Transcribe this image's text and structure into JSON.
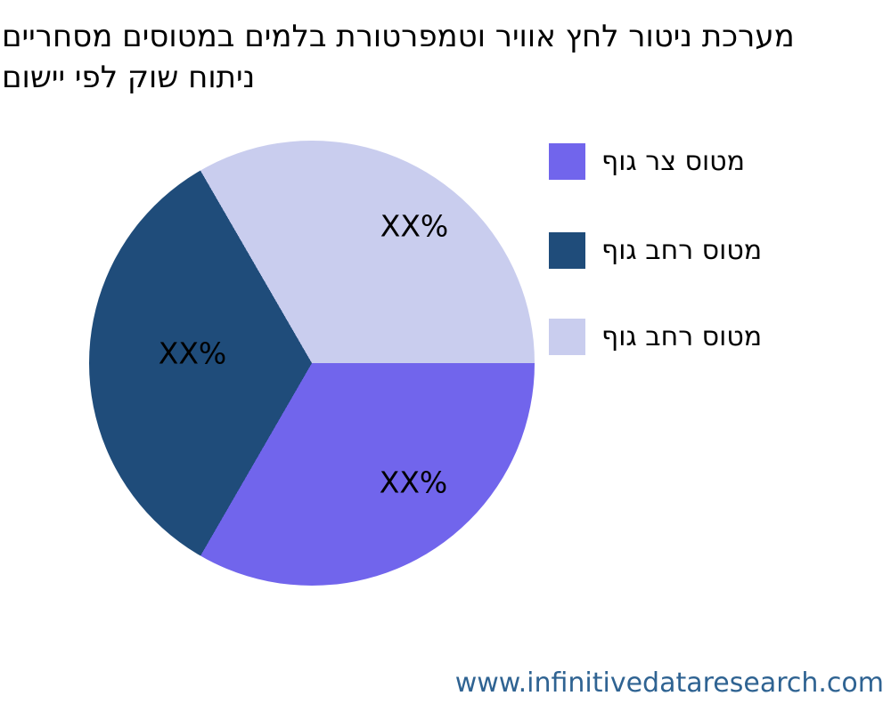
{
  "title": {
    "line1": "מערכת ניטור לחץ אוויר וטמפרטורת בלמים במטוסים מסחריים",
    "line2": "ניתוח שוק לפי יישום"
  },
  "chart_data": {
    "type": "pie",
    "title": "מערכת ניטור לחץ אוויר וטמפרטורת בלמים במטוסים מסחריים ניתוח שוק לפי יישום",
    "labels": [
      "מטוס צר גוף",
      "מטוס רחב גוף",
      "מטוס רחב גוף"
    ],
    "values": [
      33.33,
      33.33,
      33.34
    ],
    "value_labels": [
      "XX%",
      "XX%",
      "XX%"
    ],
    "colors": [
      "#7165ec",
      "#1f4c7a",
      "#c9cdee"
    ],
    "text_color": "#000000",
    "start_angle_deg": 0,
    "direction": "clockwise",
    "legend_position": "right",
    "grid": false
  },
  "watermark": {
    "text": "www.infinitivedataresearch.com",
    "color": "#2f6392"
  }
}
